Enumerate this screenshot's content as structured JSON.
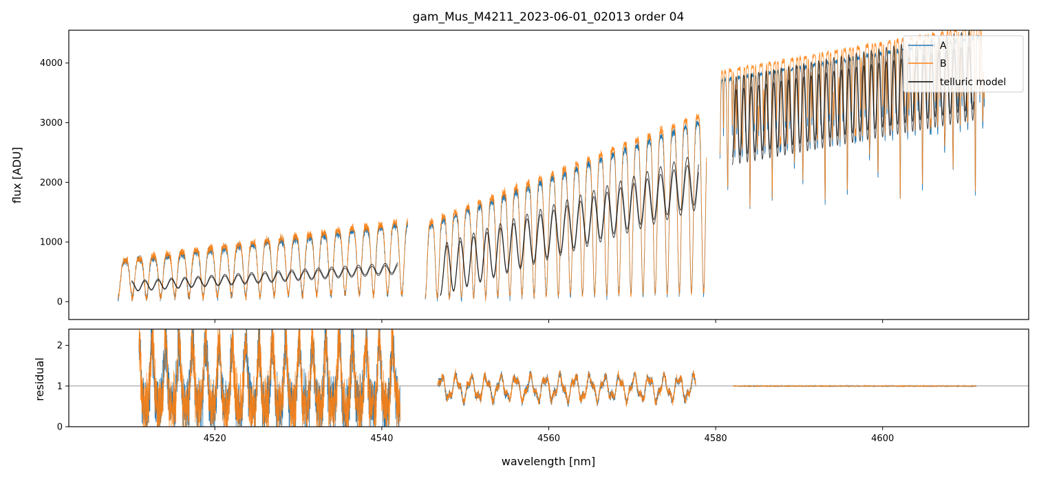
{
  "chart_data": {
    "type": "line",
    "title": "gam_Mus_M4211_2023-06-01_02013  order 04",
    "xlabel": "wavelength [nm]",
    "xlim": [
      4502.5,
      4617.5
    ],
    "xticks": [
      4520,
      4540,
      4560,
      4580,
      4600
    ],
    "legend_position": "top-right",
    "panels": [
      {
        "id": "flux",
        "ylabel": "flux [ADU]",
        "ylim": [
          -300,
          4550
        ],
        "yticks": [
          0,
          1000,
          2000,
          3000,
          4000
        ],
        "grid": false,
        "series": [
          {
            "name": "A",
            "color": "#1f77b4"
          },
          {
            "name": "B",
            "color": "#ff7f0e"
          },
          {
            "name": "telluric model",
            "color": "#000000"
          }
        ],
        "segments": [
          {
            "x_start": 4508.4,
            "x_end": 4543.1,
            "continuum_start": 650,
            "continuum_end": 1300,
            "line_depth": 0.9,
            "line_spacing": 1.7
          },
          {
            "x_start": 4545.2,
            "x_end": 4578.9,
            "continuum_start": 1250,
            "continuum_end": 3050,
            "line_depth": 0.95,
            "line_spacing": 1.45
          },
          {
            "x_start": 4580.5,
            "x_end": 4612.2,
            "continuum_start": 3700,
            "continuum_end": 4450,
            "line_depth": 0.35,
            "line_spacing": 0.9
          }
        ],
        "telluric_model_segments": [
          {
            "x_start": 4510,
            "x_end": 4542,
            "baseline_start": 330,
            "baseline_end": 620,
            "amplitude": 160
          },
          {
            "x_start": 4547,
            "x_end": 4578,
            "baseline_start": 900,
            "baseline_end": 2350,
            "amplitude": 1000
          },
          {
            "x_start": 4582,
            "x_end": 4611,
            "baseline_start": 3550,
            "baseline_end": 4300,
            "amplitude": 1400
          }
        ]
      },
      {
        "id": "residual",
        "ylabel": "residual",
        "ylim": [
          0,
          2.4
        ],
        "yticks": [
          0,
          1,
          2
        ],
        "reference_line": 1,
        "series": [
          {
            "name": "A",
            "color": "#1f77b4"
          },
          {
            "name": "B",
            "color": "#ff7f0e"
          }
        ],
        "segments": [
          {
            "x_start": 4510.9,
            "x_end": 4542.2,
            "level": 1.0,
            "scatter": 1.1
          },
          {
            "x_start": 4546.7,
            "x_end": 4577.6,
            "level": 0.95,
            "scatter": 0.35
          },
          {
            "x_start": 4582.1,
            "x_end": 4611.2,
            "level": 1.0,
            "scatter": 0.03
          }
        ]
      }
    ]
  }
}
